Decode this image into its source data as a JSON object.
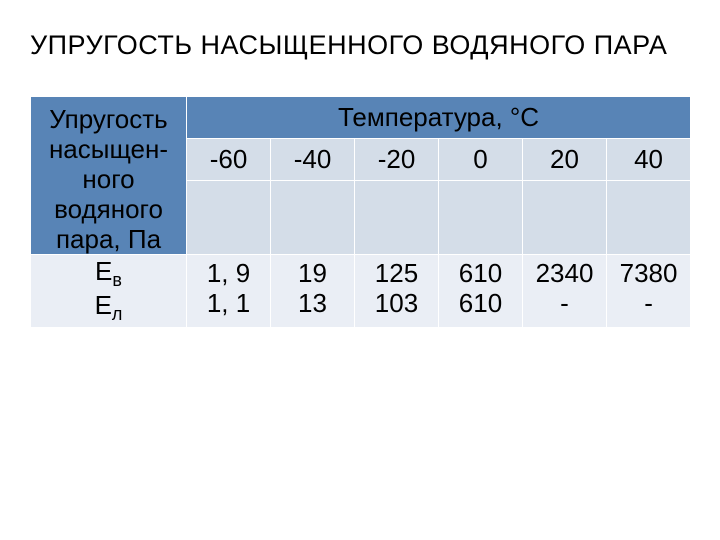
{
  "title": "УПРУГОСТЬ НАСЫЩЕННОГО ВОДЯНОГО ПАРА",
  "table": {
    "row_header_lines": [
      "Упругость",
      "насыщен-",
      "ного",
      "водяного",
      "пара, Па"
    ],
    "temp_header": "Температура, °С",
    "temp_cols": [
      "-60",
      "-40",
      "-20",
      "0",
      "20",
      "40"
    ],
    "param_labels": {
      "ev_prefix": "Е",
      "ev_sub": "в",
      "el_prefix": "Е",
      "el_sub": "л"
    },
    "ev_row": [
      "1, 9",
      "19",
      "125",
      "610",
      "2340",
      "7380"
    ],
    "el_row": [
      "1, 1",
      "13",
      "103",
      "610",
      "-",
      "-"
    ]
  },
  "colors": {
    "header_bg": "#5884b6",
    "odd_bg": "#d4dde8",
    "even_bg": "#eaeef5",
    "border": "#ffffff",
    "text": "#000000"
  },
  "fonts": {
    "title_size": 27,
    "cell_size": 26,
    "sub_size": 18
  }
}
